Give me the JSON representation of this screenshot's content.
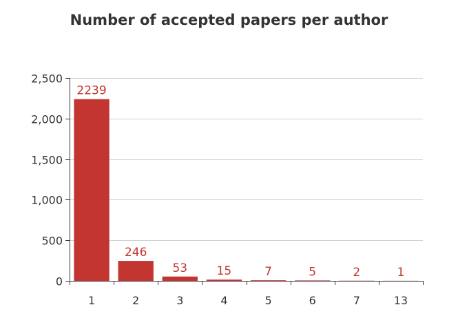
{
  "colors": {
    "bar": "#c23531",
    "label": "#c23531",
    "grid": "#d0d0d0",
    "axis": "#333333",
    "text": "#333333"
  },
  "chart_data": {
    "type": "bar",
    "title": "Number of accepted papers per author",
    "xlabel": "",
    "ylabel": "",
    "categories": [
      "1",
      "2",
      "3",
      "4",
      "5",
      "6",
      "7",
      "13"
    ],
    "values": [
      2239,
      246,
      53,
      15,
      7,
      5,
      2,
      1
    ],
    "data_labels": [
      "2239",
      "246",
      "53",
      "15",
      "7",
      "5",
      "2",
      "1"
    ],
    "ylim": [
      0,
      2500
    ],
    "yticks": [
      0,
      500,
      1000,
      1500,
      2000,
      2500
    ],
    "ytick_labels": [
      "0",
      "500",
      "1,000",
      "1,500",
      "2,000",
      "2,500"
    ],
    "grid": true,
    "legend": false
  }
}
